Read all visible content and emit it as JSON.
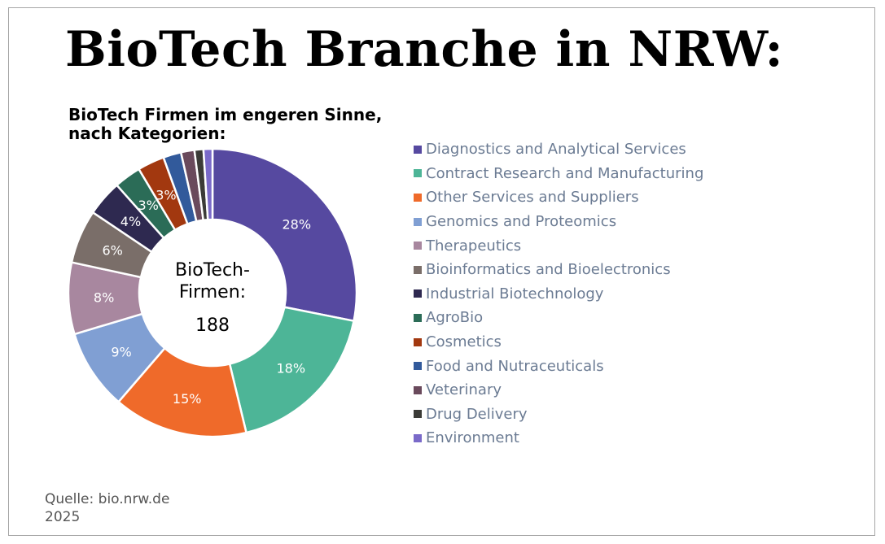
{
  "title": "BioTech Branche in NRW:",
  "subtitle_line1": "BioTech Firmen im engeren Sinne,",
  "subtitle_line2": "nach Kategorien:",
  "source_line1": "Quelle: bio.nrw.de",
  "source_line2": "2025",
  "chart_data": {
    "type": "pie",
    "variant": "donut",
    "center_line1": "BioTech-",
    "center_line2": "Firmen:",
    "center_value": "188",
    "legend_position": "right",
    "categories": [
      "Diagnostics and Analytical Services",
      "Contract Research and Manufacturing",
      "Other Services and Suppliers",
      "Genomics and Proteomics",
      "Therapeutics",
      "Bioinformatics and Bioelectronics",
      "Industrial Biotechnology",
      "AgroBio",
      "Cosmetics",
      "Food and Nutraceuticals",
      "Veterinary",
      "Drug Delivery",
      "Environment"
    ],
    "values": [
      28,
      18,
      15,
      9,
      8,
      6,
      4,
      3,
      3,
      2,
      1.5,
      1,
      1
    ],
    "labels": [
      "28%",
      "18%",
      "15%",
      "9%",
      "8%",
      "6%",
      "4%",
      "3%",
      "3%",
      "",
      "",
      "",
      ""
    ],
    "colors": [
      "#5649a0",
      "#4db597",
      "#ef6a2a",
      "#809fd3",
      "#a8879f",
      "#7a6e69",
      "#2e2950",
      "#2b6c57",
      "#a2380f",
      "#325a9b",
      "#6a4a5c",
      "#3b3b37",
      "#7a6ac9"
    ]
  }
}
